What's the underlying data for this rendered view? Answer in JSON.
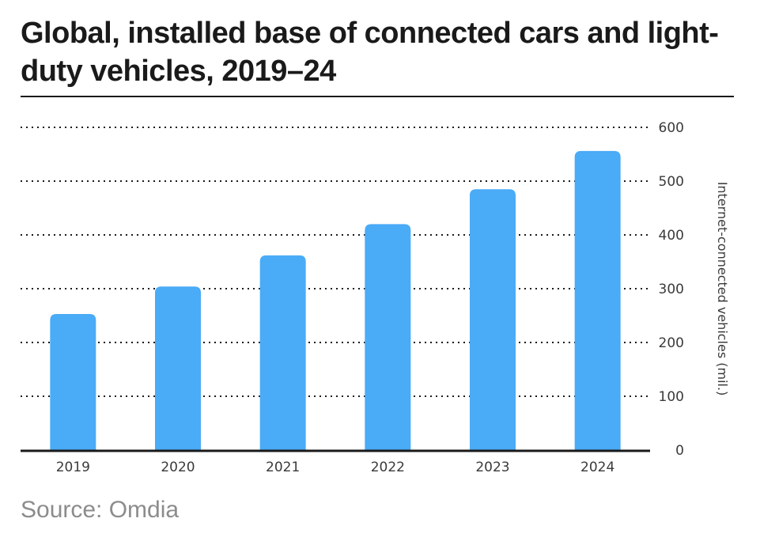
{
  "chart_data": {
    "type": "bar",
    "title": "Global, installed base of connected cars and light-duty vehicles, 2019–24",
    "categories": [
      "2019",
      "2020",
      "2021",
      "2022",
      "2023",
      "2024"
    ],
    "values": [
      253,
      304,
      362,
      420,
      485,
      556
    ],
    "xlabel": "",
    "ylabel": "Internet-connected vehicles (mil.)",
    "ylim": [
      0,
      600
    ],
    "yticks": [
      "0",
      "100",
      "200",
      "300",
      "400",
      "500",
      "600"
    ],
    "ytick_values": [
      0,
      100,
      200,
      300,
      400,
      500,
      600
    ],
    "y_axis_side": "right",
    "grid": true,
    "bar_color": "#4aabf7",
    "source": "Source: Omdia"
  }
}
